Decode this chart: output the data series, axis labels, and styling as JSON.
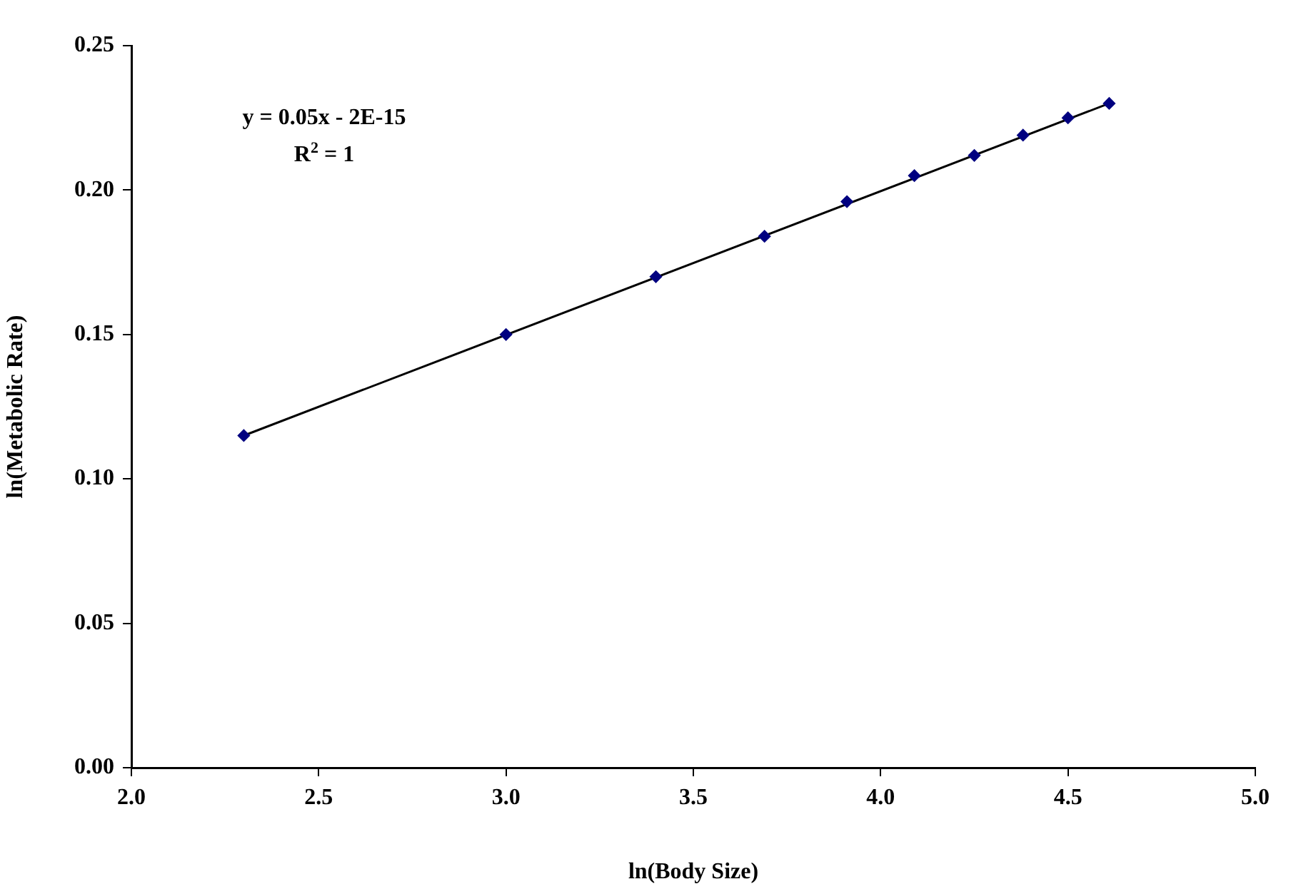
{
  "chart_data": {
    "type": "scatter",
    "xlabel": "ln(Body Size)",
    "ylabel": "ln(Metabolic Rate)",
    "annotations": [
      "y = 0.05x - 2E-15",
      "R$^{2}$ = 1"
    ],
    "series": [
      {
        "color": "#000080",
        "x": [
          2.3,
          3.0,
          3.4,
          3.69,
          3.91,
          4.09,
          4.25,
          4.38,
          4.5,
          4.61
        ],
        "values": [
          0.115,
          0.15,
          0.17,
          0.184,
          0.196,
          0.205,
          0.212,
          0.219,
          0.225,
          0.23
        ]
      },
      {
        "type": "line",
        "color": "#000000",
        "x": [
          2.3,
          4.61
        ],
        "values": [
          0.115,
          0.23
        ],
        "marker": "none"
      }
    ],
    "marker": "diamond",
    "grid": false,
    "legend": false,
    "xlim": [
      2,
      5
    ],
    "xticks": [
      {
        "value": 2,
        "label": "2.0"
      },
      {
        "value": 2.5,
        "label": "2.5"
      },
      {
        "value": 3,
        "label": "3.0"
      },
      {
        "value": 3.5,
        "label": "3.5"
      },
      {
        "value": 4,
        "label": "4.0"
      },
      {
        "value": 4.5,
        "label": "4.5"
      },
      {
        "value": 5,
        "label": "5.0"
      }
    ],
    "ylim": [
      0,
      0.25
    ],
    "yticks": [
      {
        "value": 0,
        "label": "0.00"
      },
      {
        "value": 0.05,
        "label": "0.05"
      },
      {
        "value": 0.1,
        "label": "0.10"
      },
      {
        "value": 0.15,
        "label": "0.15"
      },
      {
        "value": 0.2,
        "label": "0.20"
      },
      {
        "value": 0.25,
        "label": "0.25"
      }
    ]
  }
}
